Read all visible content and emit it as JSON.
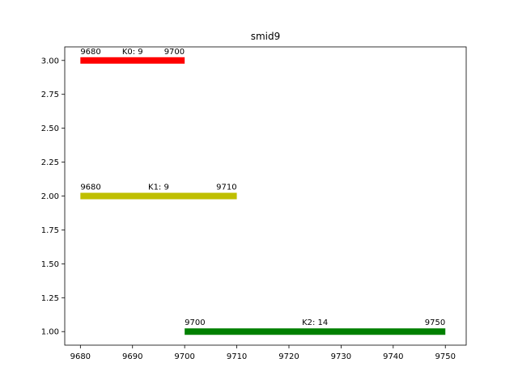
{
  "chart_data": {
    "type": "bar",
    "orientation": "horizontal-intervals",
    "title": "smid9",
    "xlabel": "",
    "ylabel": "",
    "xlim": [
      9677,
      9754
    ],
    "ylim": [
      0.9,
      3.1
    ],
    "x_ticks": [
      9680,
      9690,
      9700,
      9710,
      9720,
      9730,
      9740,
      9750
    ],
    "y_ticks": [
      1.0,
      1.25,
      1.5,
      1.75,
      2.0,
      2.25,
      2.5,
      2.75,
      3.0
    ],
    "x_tick_labels": [
      "9680",
      "9690",
      "9700",
      "9710",
      "9720",
      "9730",
      "9740",
      "9750"
    ],
    "y_tick_labels": [
      "1.00",
      "1.25",
      "1.50",
      "1.75",
      "2.00",
      "2.25",
      "2.50",
      "2.75",
      "3.00"
    ],
    "grid": false,
    "segments": [
      {
        "y": 3,
        "start": 9680,
        "end": 9700,
        "label": "K0: 9",
        "start_label": "9680",
        "end_label": "9700",
        "color": "#ff0000"
      },
      {
        "y": 2,
        "start": 9680,
        "end": 9710,
        "label": "K1: 9",
        "start_label": "9680",
        "end_label": "9710",
        "color": "#bfbf00"
      },
      {
        "y": 1,
        "start": 9700,
        "end": 9750,
        "label": "K2: 14",
        "start_label": "9700",
        "end_label": "9750",
        "color": "#008000"
      }
    ]
  }
}
